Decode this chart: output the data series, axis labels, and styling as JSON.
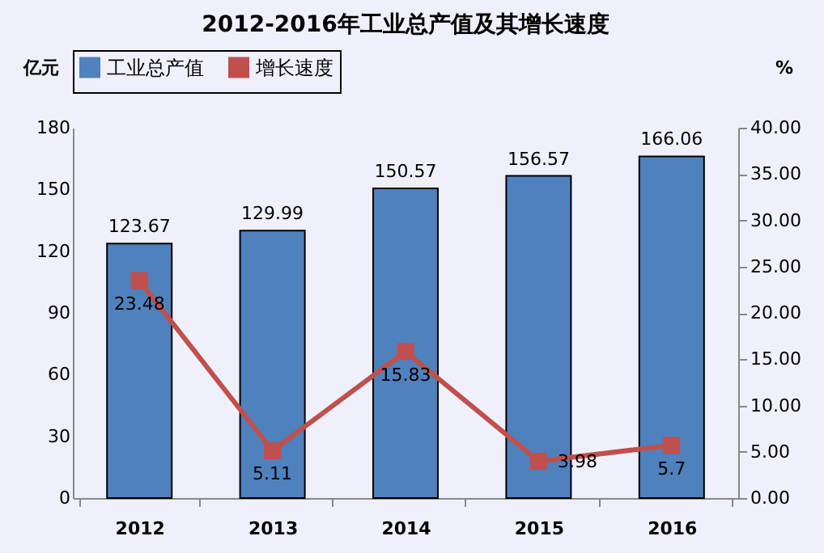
{
  "chart_data": {
    "type": "bar",
    "title": "2012-2016年工业总产值及其增长速度",
    "ylabel": "亿元",
    "y2label": "%",
    "categories": [
      "2012",
      "2013",
      "2014",
      "2015",
      "2016"
    ],
    "series": [
      {
        "name": "工业总产值",
        "color": "#4f81bd",
        "values": [
          123.67,
          129.99,
          150.57,
          156.57,
          166.06
        ]
      },
      {
        "name": "增长速度",
        "type": "line",
        "axis": "y2",
        "color": "#c0504d",
        "values": [
          23.48,
          5.11,
          15.83,
          3.98,
          5.7
        ]
      }
    ],
    "ylim": [
      0,
      180
    ],
    "yticks": [
      0,
      30,
      60,
      90,
      120,
      150,
      180
    ],
    "y2lim": [
      0,
      40
    ],
    "y2ticks": [
      {
        "value": 0,
        "label": "0.00"
      },
      {
        "value": 5,
        "label": "5.00"
      },
      {
        "value": 10,
        "label": "10.00"
      },
      {
        "value": 15,
        "label": "15.00"
      },
      {
        "value": 20,
        "label": "20.00"
      },
      {
        "value": 25,
        "label": "25.00"
      },
      {
        "value": 30,
        "label": "30.00"
      },
      {
        "value": 35,
        "label": "35.00"
      },
      {
        "value": 40,
        "label": "40.00"
      }
    ],
    "data_labels": true,
    "legend": "top",
    "marker": "square",
    "grid": false
  }
}
